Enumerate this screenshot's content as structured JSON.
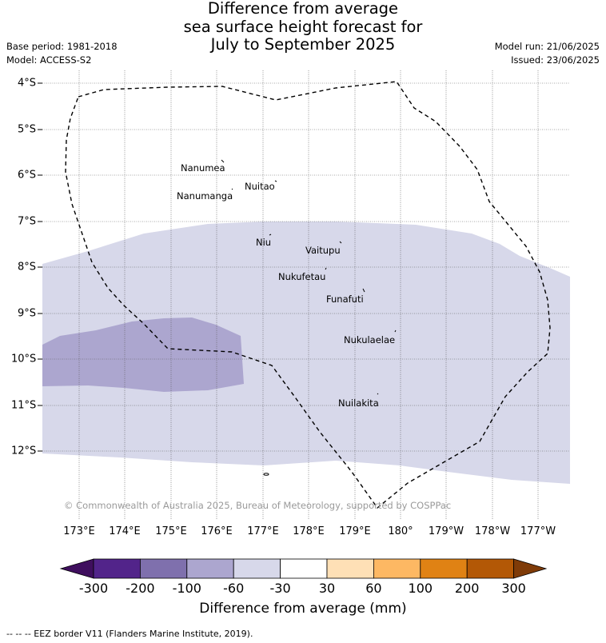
{
  "title": {
    "line1": "Difference from average",
    "line2": "sea surface height forecast for",
    "line3": "July to September 2025"
  },
  "meta": {
    "base_period": "Base period: 1981-2018",
    "model": "Model: ACCESS-S2",
    "model_run": "Model run: 21/06/2025",
    "issued": "Issued: 23/06/2025"
  },
  "map": {
    "latitude_labels": [
      "4°S",
      "5°S",
      "6°S",
      "7°S",
      "8°S",
      "9°S",
      "10°S",
      "11°S",
      "12°S"
    ],
    "longitude_labels": [
      "173°E",
      "174°E",
      "175°E",
      "176°E",
      "177°E",
      "178°E",
      "179°E",
      "180°",
      "179°W",
      "178°W",
      "177°W"
    ],
    "islands": [
      {
        "name": "Nanumea"
      },
      {
        "name": "Nuitao"
      },
      {
        "name": "Nanumanga"
      },
      {
        "name": "Niu"
      },
      {
        "name": "Vaitupu"
      },
      {
        "name": "Nukufetau"
      },
      {
        "name": "Funafuti"
      },
      {
        "name": "Nukulaelae"
      },
      {
        "name": "Nuilakita"
      }
    ],
    "copyright": "© Commonwealth of Australia 2025, Bureau of Meteorology, supported by COSPPac"
  },
  "colorbar": {
    "ticks": [
      "-300",
      "-200",
      "-100",
      "-60",
      "-30",
      "30",
      "60",
      "100",
      "200",
      "300"
    ],
    "colors": {
      "below_min": "#3f0f5e",
      "bins": [
        "#52248a",
        "#7f70ad",
        "#aca6cf",
        "#d7d8ea",
        "#ffffff",
        "#fee0b6",
        "#fdb863",
        "#e08214",
        "#b35806"
      ],
      "above_max": "#7f3b08"
    },
    "label": "Difference from average (mm)"
  },
  "legend": {
    "eez": "-- -- -- EEZ border V11 (Flanders Marine Institute, 2019)."
  }
}
